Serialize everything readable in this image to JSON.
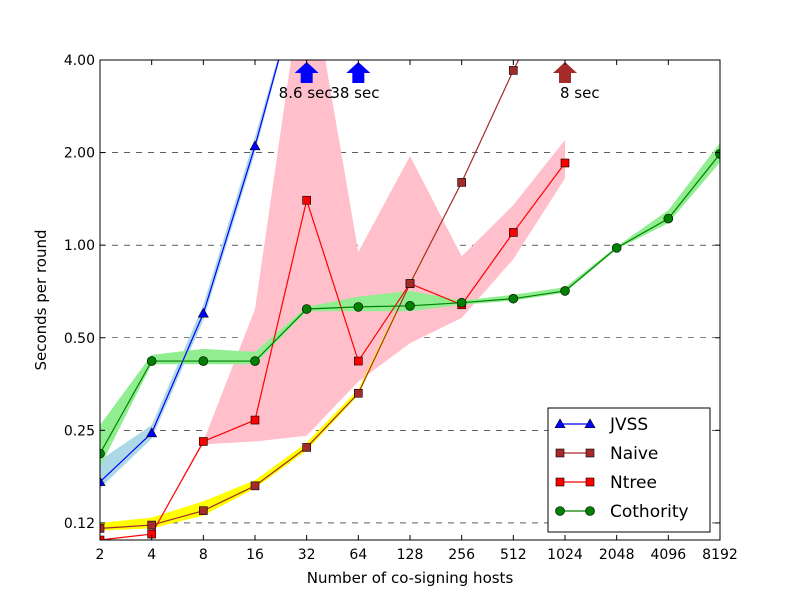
{
  "chart_data": {
    "type": "line",
    "title": "",
    "xlabel": "Number of co-signing hosts",
    "ylabel": "Seconds per round",
    "x_scale": "log2",
    "y_scale": "log",
    "x_ticks": [
      2,
      4,
      8,
      16,
      32,
      64,
      128,
      256,
      512,
      1024,
      2048,
      4096,
      8192
    ],
    "x_tick_labels": [
      "2",
      "4",
      "8",
      "16",
      "32",
      "64",
      "128",
      "256",
      "512",
      "1024",
      "2048",
      "4096",
      "8192"
    ],
    "y_ticks": [
      0.125,
      0.25,
      0.5,
      1.0,
      2.0,
      4.0
    ],
    "y_tick_labels": [
      "0.12",
      "0.25",
      "0.50",
      "1.00",
      "2.00",
      "4.00"
    ],
    "xlim": [
      2,
      8192
    ],
    "ylim": [
      0.11,
      4.0
    ],
    "grid": "horizontal-dashed",
    "legend_position": "bottom-right",
    "series": [
      {
        "name": "JVSS",
        "color": "#0000ff",
        "band_color": "#add8e6",
        "marker": "triangle",
        "x": [
          2,
          4,
          8,
          16,
          32
        ],
        "y": [
          0.17,
          0.245,
          0.6,
          2.1,
          8.6
        ],
        "band_low": [
          0.162,
          0.235,
          0.57,
          2.0,
          8.6
        ],
        "band_high": [
          0.2,
          0.26,
          0.64,
          2.25,
          8.6
        ],
        "markers_upto": 3
      },
      {
        "name": "Naive",
        "color": "#a52a2a",
        "band_color": "#ffff00",
        "marker": "square",
        "x": [
          2,
          4,
          8,
          16,
          32,
          64,
          128,
          256,
          512,
          1024
        ],
        "y": [
          0.12,
          0.123,
          0.137,
          0.165,
          0.22,
          0.33,
          0.75,
          1.6,
          3.7,
          8.0
        ],
        "band_low": [
          0.118,
          0.12,
          0.132,
          0.162,
          0.215,
          0.325,
          0.74,
          1.6,
          3.7,
          8.0
        ],
        "band_high": [
          0.125,
          0.13,
          0.147,
          0.172,
          0.228,
          0.34,
          0.76,
          1.6,
          3.7,
          8.0
        ],
        "markers_upto": 8
      },
      {
        "name": "Ntree",
        "color": "#ff0000",
        "band_color": "#ffc0cb",
        "marker": "square",
        "x": [
          2,
          4,
          8,
          16,
          32,
          64,
          128,
          256,
          512,
          1024
        ],
        "y": [
          0.11,
          0.115,
          0.23,
          0.27,
          1.4,
          0.42,
          0.75,
          0.64,
          1.1,
          1.85
        ],
        "band_low": [
          0.11,
          0.115,
          0.225,
          0.23,
          0.24,
          0.36,
          0.48,
          0.58,
          0.9,
          1.65
        ],
        "band_high": [
          0.11,
          0.115,
          0.23,
          0.62,
          9.0,
          0.95,
          1.95,
          0.92,
          1.35,
          2.2
        ],
        "markers_upto": 9
      },
      {
        "name": "Cothority",
        "color": "#008000",
        "band_color": "#90ee90",
        "marker": "circle",
        "x": [
          2,
          4,
          8,
          16,
          32,
          64,
          128,
          256,
          512,
          1024,
          2048,
          4096,
          8192
        ],
        "y": [
          0.21,
          0.42,
          0.42,
          0.42,
          0.62,
          0.63,
          0.635,
          0.65,
          0.67,
          0.71,
          0.98,
          1.22,
          1.98
        ],
        "band_low": [
          0.19,
          0.41,
          0.41,
          0.41,
          0.61,
          0.61,
          0.61,
          0.64,
          0.66,
          0.7,
          0.97,
          1.18,
          1.86
        ],
        "band_high": [
          0.26,
          0.44,
          0.46,
          0.45,
          0.63,
          0.68,
          0.71,
          0.66,
          0.69,
          0.73,
          0.99,
          1.3,
          2.15
        ],
        "markers_upto": 12
      }
    ],
    "annotations": [
      {
        "text": "8.6 sec",
        "x": 32,
        "color": "#0000ff"
      },
      {
        "text": "38 sec",
        "x": 64,
        "color": "#0000ff"
      },
      {
        "text": "8 sec",
        "x": 1024,
        "color": "#a52a2a"
      }
    ]
  }
}
